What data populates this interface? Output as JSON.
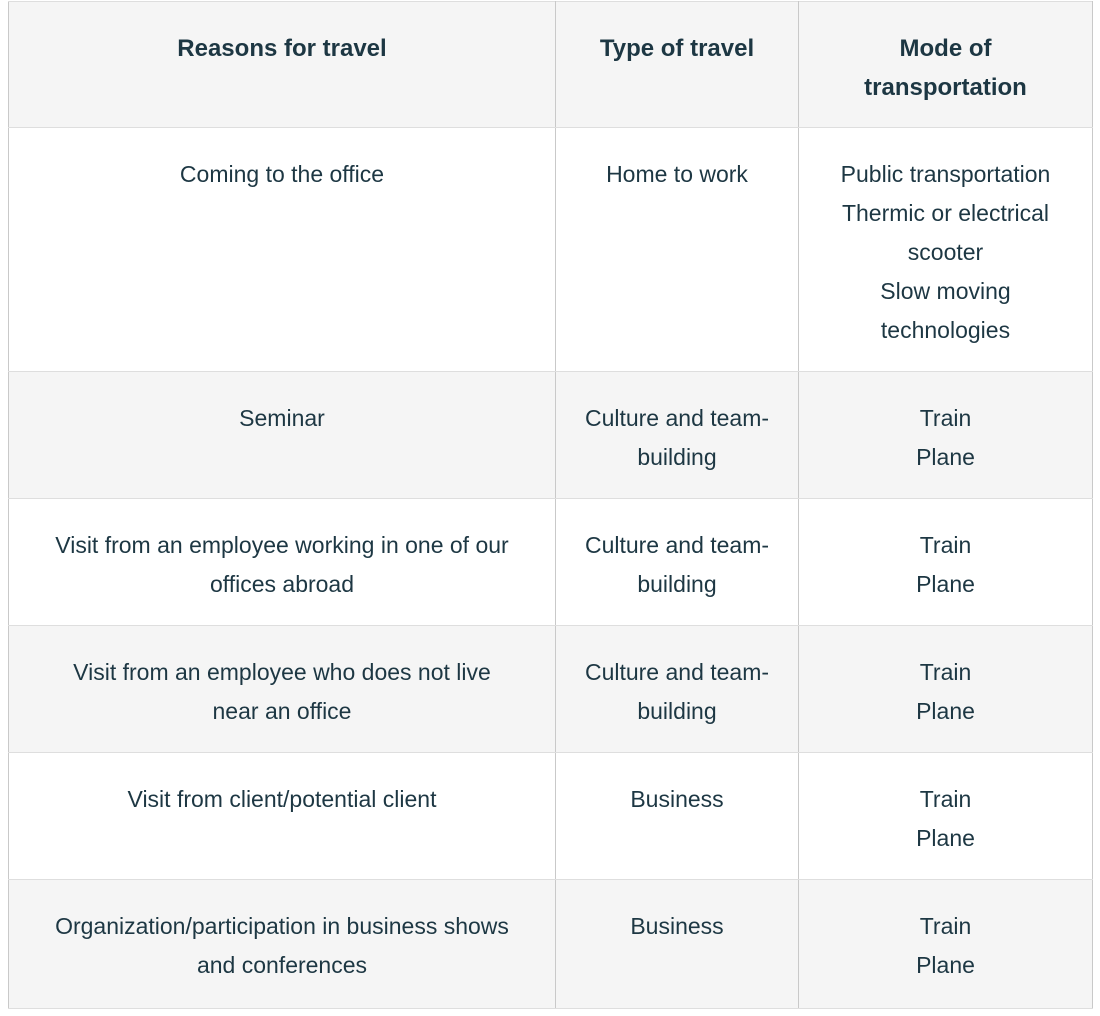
{
  "colors": {
    "text": "#1d3743",
    "header_background": "#f5f5f5",
    "stripe_background": "#f5f5f5",
    "row_background": "#ffffff",
    "border": "#c9c9c9"
  },
  "table": {
    "headers": [
      "Reasons for travel",
      "Type of travel",
      "Mode of transportation"
    ],
    "rows": [
      {
        "reason": "Coming to the office",
        "type": "Home to work",
        "modes": [
          "Public transportation",
          "Thermic or electrical scooter",
          "Slow moving technologies"
        ]
      },
      {
        "reason": "Seminar",
        "type": "Culture and team-building",
        "modes": [
          "Train",
          "Plane"
        ]
      },
      {
        "reason": "Visit from an employee working in one of our offices abroad",
        "type": "Culture and team-building",
        "modes": [
          "Train",
          "Plane"
        ]
      },
      {
        "reason": "Visit from an employee who does not live near an office",
        "type": "Culture and team-building",
        "modes": [
          "Train",
          "Plane"
        ]
      },
      {
        "reason": "Visit from client/potential client",
        "type": "Business",
        "modes": [
          "Train",
          "Plane"
        ]
      },
      {
        "reason": "Organization/participation in business shows and conferences",
        "type": "Business",
        "modes": [
          "Train",
          "Plane"
        ]
      }
    ]
  }
}
